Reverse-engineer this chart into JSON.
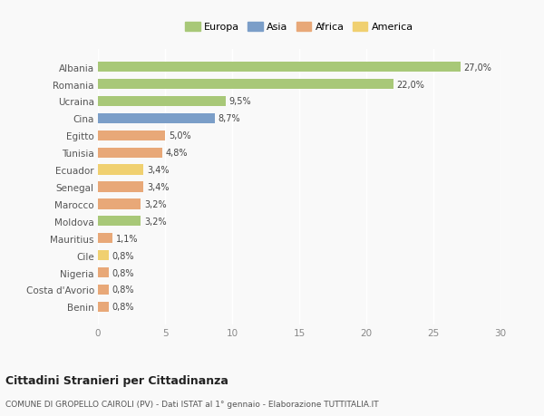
{
  "categories": [
    "Albania",
    "Romania",
    "Ucraina",
    "Cina",
    "Egitto",
    "Tunisia",
    "Ecuador",
    "Senegal",
    "Marocco",
    "Moldova",
    "Mauritius",
    "Cile",
    "Nigeria",
    "Costa d'Avorio",
    "Benin"
  ],
  "values": [
    27.0,
    22.0,
    9.5,
    8.7,
    5.0,
    4.8,
    3.4,
    3.4,
    3.2,
    3.2,
    1.1,
    0.8,
    0.8,
    0.8,
    0.8
  ],
  "continents": [
    "Europa",
    "Europa",
    "Europa",
    "Asia",
    "Africa",
    "Africa",
    "America",
    "Africa",
    "Africa",
    "Europa",
    "Africa",
    "America",
    "Africa",
    "Africa",
    "Africa"
  ],
  "colors": {
    "Europa": "#a8c878",
    "Asia": "#7b9ec8",
    "Africa": "#e8a878",
    "America": "#f0d070"
  },
  "labels": [
    "27,0%",
    "22,0%",
    "9,5%",
    "8,7%",
    "5,0%",
    "4,8%",
    "3,4%",
    "3,4%",
    "3,2%",
    "3,2%",
    "1,1%",
    "0,8%",
    "0,8%",
    "0,8%",
    "0,8%"
  ],
  "title": "Cittadini Stranieri per Cittadinanza",
  "subtitle": "COMUNE DI GROPELLO CAIROLI (PV) - Dati ISTAT al 1° gennaio - Elaborazione TUTTITALIA.IT",
  "xlim": [
    0,
    30
  ],
  "xticks": [
    0,
    5,
    10,
    15,
    20,
    25,
    30
  ],
  "legend_order": [
    "Europa",
    "Asia",
    "Africa",
    "America"
  ],
  "background_color": "#f9f9f9",
  "bar_height": 0.6
}
